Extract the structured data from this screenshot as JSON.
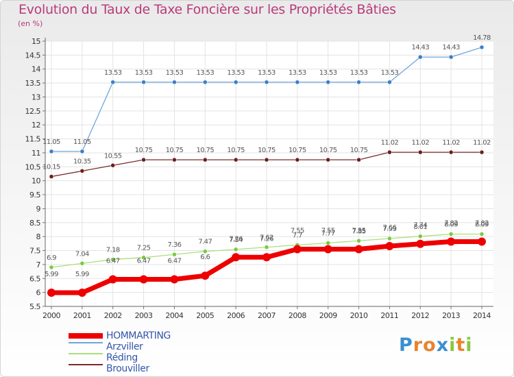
{
  "title": "Evolution du Taux de Taxe Foncière sur les Propriétés Bâties",
  "subtitle": "(en %)",
  "logo": {
    "text": "Proxiti",
    "letters": [
      "P",
      "r",
      "o",
      "x",
      "i",
      "t",
      "i"
    ],
    "colors": [
      "#3a8fd0",
      "#e8832e",
      "#e8832e",
      "#3a8fd0",
      "#8cc63f",
      "#e8832e",
      "#8cc63f"
    ]
  },
  "chart_data": {
    "type": "line",
    "title": "Evolution du Taux de Taxe Foncière sur les Propriétés Bâties",
    "ylabel": "(en %)",
    "x": [
      2000,
      2001,
      2002,
      2003,
      2004,
      2005,
      2006,
      2007,
      2008,
      2009,
      2010,
      2011,
      2012,
      2013,
      2014
    ],
    "x_labels": [
      "2000",
      "2001",
      "2002",
      "2003",
      "2004",
      "2005",
      "2006",
      "2007",
      "2008",
      "2009",
      "2010",
      "2011",
      "2012",
      "2013",
      "2014"
    ],
    "ylim": [
      5.5,
      15
    ],
    "yticks": [
      "5.5",
      "6",
      "6.5",
      "7",
      "7.5",
      "8",
      "8.5",
      "9",
      "9.5",
      "10",
      "10.5",
      "11",
      "11.5",
      "12",
      "12.5",
      "13",
      "13.5",
      "14",
      "14.5",
      "15"
    ],
    "grid": true,
    "series": [
      {
        "name": "Arzviller",
        "color": "#6ca6dc",
        "marker": "#3a7fc4",
        "width": 1.3,
        "radius": 3,
        "values": [
          11.05,
          11.05,
          13.53,
          13.53,
          13.53,
          13.53,
          13.53,
          13.53,
          13.53,
          13.53,
          13.53,
          13.53,
          14.43,
          14.43,
          14.78
        ],
        "labels": [
          "11.05",
          "11.05",
          "13.53",
          "13.53",
          "13.53",
          "13.53",
          "13.53",
          "13.53",
          "13.53",
          "13.53",
          "13.53",
          "13.53",
          "14.43",
          "14.43",
          "14.78"
        ]
      },
      {
        "name": "Brouviller",
        "color": "#7a2a2a",
        "marker": "#6b1e1e",
        "width": 1.3,
        "radius": 3,
        "values": [
          10.15,
          10.35,
          10.55,
          10.75,
          10.75,
          10.75,
          10.75,
          10.75,
          10.75,
          10.75,
          10.75,
          11.02,
          11.02,
          11.02,
          11.02
        ],
        "labels": [
          "10.15",
          "10.35",
          "10.55",
          "10.75",
          "10.75",
          "10.75",
          "10.75",
          "10.75",
          "10.75",
          "10.75",
          "10.75",
          "11.02",
          "11.02",
          "11.02",
          "11.02"
        ]
      },
      {
        "name": "Réding",
        "color": "#a8e07a",
        "marker": "#7ac943",
        "width": 1.3,
        "radius": 3,
        "values": [
          6.9,
          7.04,
          7.18,
          7.25,
          7.36,
          7.47,
          7.54,
          7.62,
          7.7,
          7.77,
          7.85,
          7.93,
          8.01,
          8.09,
          8.09
        ],
        "labels": [
          "6.9",
          "7.04",
          "7.18",
          "7.25",
          "7.36",
          "7.47",
          "7.54",
          "7.62",
          "7.7",
          "7.77",
          "7.85",
          "7.93",
          "8.01",
          "8.09",
          "8.09"
        ]
      },
      {
        "name": "HOMMARTING",
        "color": "#ee0000",
        "marker": "#ee0000",
        "width": 7,
        "radius": 6,
        "values": [
          5.99,
          5.99,
          6.47,
          6.47,
          6.47,
          6.6,
          7.26,
          7.26,
          7.55,
          7.55,
          7.55,
          7.66,
          7.74,
          7.82,
          7.82
        ],
        "labels": [
          "5.99",
          "5.99",
          "6.47",
          "6.47",
          "6.47",
          "6.6",
          "7.26",
          "7.26",
          "7.55",
          "7.55",
          "7.55",
          "7.66",
          "7.74",
          "7.82",
          "7.82"
        ]
      }
    ],
    "legend": {
      "position": "bottom-left",
      "entries": [
        {
          "name": "HOMMARTING",
          "color": "#ee0000"
        },
        {
          "name": "Arzviller",
          "color": "#6ca6dc"
        },
        {
          "name": "Réding",
          "color": "#a8e07a"
        },
        {
          "name": "Brouviller",
          "color": "#7a2a2a"
        }
      ]
    }
  }
}
